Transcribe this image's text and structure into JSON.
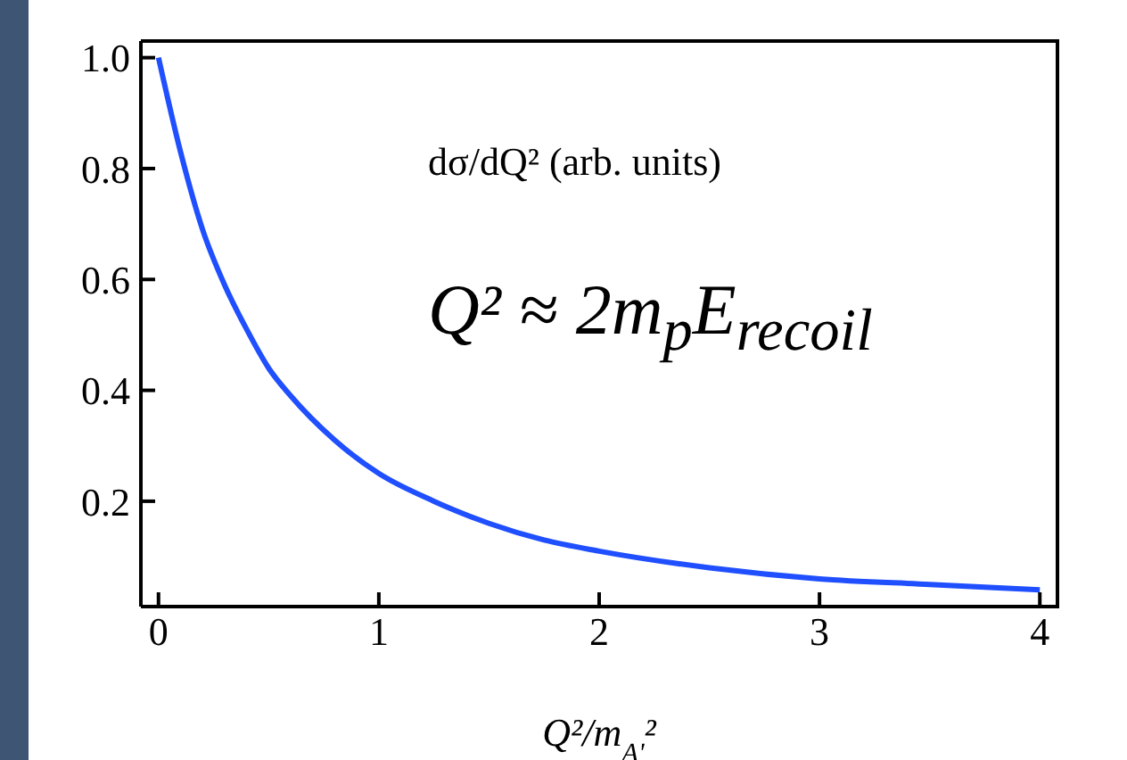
{
  "chart_data": {
    "type": "line",
    "xlabel": "Q²/m$_{A'}$²",
    "annotations": [
      "dσ/dQ² (arb. units)",
      "Q² ≈ 2m$_{p}$E$_{recoil}$"
    ],
    "x": [
      0,
      0.1,
      0.2,
      0.3,
      0.4,
      0.5,
      0.6,
      0.8,
      1,
      1.25,
      1.5,
      1.75,
      2,
      2.5,
      3,
      3.5,
      4
    ],
    "series": [
      {
        "color": "#1f4fff",
        "values": [
          1.0,
          0.83,
          0.69,
          0.59,
          0.51,
          0.44,
          0.39,
          0.31,
          0.25,
          0.2,
          0.16,
          0.13,
          0.11,
          0.08,
          0.06,
          0.05,
          0.04
        ]
      }
    ],
    "xlim": [
      -0.08,
      4.08
    ],
    "ylim": [
      0.01,
      1.03
    ],
    "xticks": [
      0,
      1,
      2,
      3,
      4
    ],
    "yticks": [
      0.2,
      0.4,
      0.6,
      0.8,
      {
        "value": 1,
        "label": "1.0"
      }
    ],
    "marker": "none",
    "line_style": "solid"
  }
}
